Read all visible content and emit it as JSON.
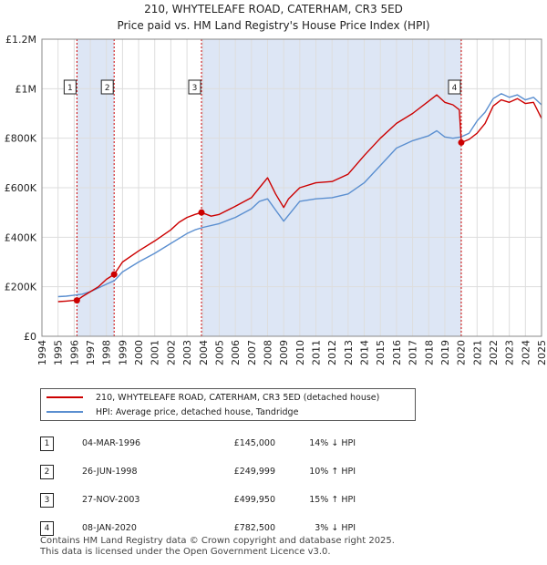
{
  "title": "210, WHYTELEAFE ROAD, CATERHAM, CR3 5ED",
  "subtitle": "Price paid vs. HM Land Registry's House Price Index (HPI)",
  "colors": {
    "property": "#cc0000",
    "hpi": "#5b8fd0",
    "shade": "#dde6f5",
    "vline": "#cc0000"
  },
  "chart_data": {
    "type": "line",
    "title": "210, WHYTELEAFE ROAD, CATERHAM, CR3 5ED",
    "subtitle": "Price paid vs. HM Land Registry's House Price Index (HPI)",
    "xlim": [
      1994,
      2025
    ],
    "ylim": [
      0,
      1200000
    ],
    "y_ticks": [
      0,
      200000,
      400000,
      600000,
      800000,
      1000000,
      1200000
    ],
    "y_tick_labels": [
      "£0",
      "£200K",
      "£400K",
      "£600K",
      "£800K",
      "£1M",
      "£1.2M"
    ],
    "x_ticks": [
      1994,
      1995,
      1996,
      1997,
      1998,
      1999,
      2000,
      2001,
      2002,
      2003,
      2004,
      2005,
      2006,
      2007,
      2008,
      2009,
      2010,
      2011,
      2012,
      2013,
      2014,
      2015,
      2016,
      2017,
      2018,
      2019,
      2020,
      2021,
      2022,
      2023,
      2024,
      2025
    ],
    "x_tick_labels": [
      "1994",
      "1995",
      "1996",
      "1997",
      "1998",
      "1999",
      "2000",
      "2001",
      "2002",
      "2003",
      "2004",
      "2005",
      "2006",
      "2007",
      "2008",
      "2009",
      "2010",
      "2011",
      "2012",
      "2013",
      "2014",
      "2015",
      "2016",
      "2017",
      "2018",
      "2019",
      "2020",
      "2021",
      "2022",
      "2023",
      "2024",
      "2025"
    ],
    "shaded_regions": [
      [
        1996.17,
        1998.48
      ],
      [
        2003.9,
        2020.02
      ]
    ],
    "series": [
      {
        "name": "210, WHYTELEAFE ROAD, CATERHAM, CR3 5ED (detached house)",
        "x": [
          1995.0,
          1995.5,
          1996.0,
          1996.17,
          1996.5,
          1997.0,
          1997.5,
          1998.0,
          1998.48,
          1999.0,
          2000.0,
          2001.0,
          2002.0,
          2002.5,
          2003.0,
          2003.5,
          2003.9,
          2004.5,
          2005.0,
          2006.0,
          2007.0,
          2007.5,
          2008.0,
          2008.5,
          2009.0,
          2009.3,
          2010.0,
          2011.0,
          2012.0,
          2013.0,
          2014.0,
          2015.0,
          2016.0,
          2017.0,
          2018.0,
          2018.5,
          2019.0,
          2019.5,
          2019.9,
          2020.02,
          2020.5,
          2021.0,
          2021.5,
          2022.0,
          2022.5,
          2023.0,
          2023.5,
          2024.0,
          2024.5,
          2025.0
        ],
        "values": [
          140000,
          142000,
          145000,
          145000,
          160000,
          180000,
          200000,
          230000,
          249999,
          300000,
          345000,
          385000,
          430000,
          460000,
          480000,
          492000,
          499950,
          485000,
          492000,
          525000,
          560000,
          600000,
          640000,
          575000,
          520000,
          555000,
          600000,
          620000,
          625000,
          655000,
          730000,
          800000,
          860000,
          900000,
          950000,
          975000,
          945000,
          935000,
          915000,
          782500,
          795000,
          820000,
          860000,
          930000,
          955000,
          945000,
          960000,
          940000,
          945000,
          880000
        ]
      },
      {
        "name": "HPI: Average price, detached house, Tandridge",
        "x": [
          1995.0,
          1995.5,
          1996.0,
          1996.5,
          1997.0,
          1997.5,
          1998.0,
          1998.5,
          1999.0,
          2000.0,
          2001.0,
          2002.0,
          2003.0,
          2003.5,
          2004.0,
          2005.0,
          2006.0,
          2007.0,
          2007.5,
          2008.0,
          2008.5,
          2009.0,
          2009.5,
          2010.0,
          2011.0,
          2012.0,
          2013.0,
          2014.0,
          2015.0,
          2016.0,
          2017.0,
          2018.0,
          2018.5,
          2019.0,
          2019.5,
          2020.0,
          2020.5,
          2021.0,
          2021.5,
          2022.0,
          2022.5,
          2023.0,
          2023.5,
          2024.0,
          2024.5,
          2025.0
        ],
        "values": [
          160000,
          162000,
          166000,
          170000,
          180000,
          195000,
          210000,
          225000,
          260000,
          300000,
          335000,
          375000,
          415000,
          430000,
          440000,
          455000,
          480000,
          515000,
          545000,
          555000,
          510000,
          465000,
          505000,
          545000,
          555000,
          560000,
          575000,
          620000,
          690000,
          760000,
          790000,
          810000,
          830000,
          805000,
          800000,
          805000,
          820000,
          870000,
          905000,
          960000,
          980000,
          965000,
          975000,
          955000,
          965000,
          935000
        ]
      }
    ],
    "sales": [
      {
        "num": "1",
        "x": 1996.17,
        "price": 145000,
        "date": "04-MAR-1996",
        "price_label": "£145,000",
        "hpi": "14% ↓ HPI"
      },
      {
        "num": "2",
        "x": 1998.48,
        "price": 249999,
        "date": "26-JUN-1998",
        "price_label": "£249,999",
        "hpi": "10% ↑ HPI"
      },
      {
        "num": "3",
        "x": 2003.9,
        "price": 499950,
        "date": "27-NOV-2003",
        "price_label": "£499,950",
        "hpi": "15% ↑ HPI"
      },
      {
        "num": "4",
        "x": 2020.02,
        "price": 782500,
        "date": "08-JAN-2020",
        "price_label": "£782,500",
        "hpi": "3% ↓ HPI"
      }
    ]
  },
  "legend": {
    "property_label": "210, WHYTELEAFE ROAD, CATERHAM, CR3 5ED (detached house)",
    "hpi_label": "HPI: Average price, detached house, Tandridge"
  },
  "footer": {
    "line1": "Contains HM Land Registry data © Crown copyright and database right 2025.",
    "line2": "This data is licensed under the Open Government Licence v3.0."
  }
}
